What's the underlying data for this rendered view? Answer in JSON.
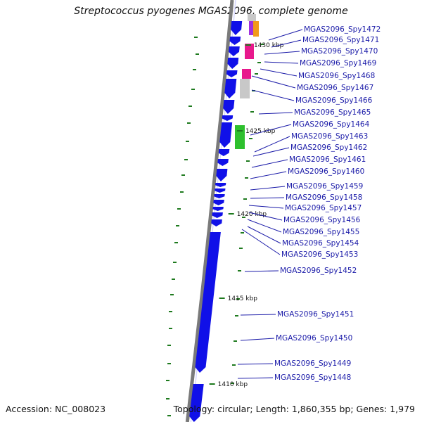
{
  "title": "Streptococcus pyogenes MGAS2096, complete genome",
  "footer": {
    "accession": "Accession: NC_008023",
    "topology": "Topology: circular; Length: 1,860,355 bp; Genes: 1,979"
  },
  "colors": {
    "gene_strand": "#1010e8",
    "backbone": "#7a7a7a",
    "tick": "#1e7a1e",
    "label": "#1a1aa8",
    "magenta": "#e8188c",
    "orange": "#f29a1a",
    "green": "#2ec02e",
    "grey": "#c8c8c8"
  },
  "kbp_markers": [
    "1430 kbp",
    "1425 kbp",
    "1420 kbp",
    "1415 kbp",
    "1410 kbp"
  ],
  "genes": [
    "MGAS2096_Spy1472",
    "MGAS2096_Spy1471",
    "MGAS2096_Spy1470",
    "MGAS2096_Spy1469",
    "MGAS2096_Spy1468",
    "MGAS2096_Spy1467",
    "MGAS2096_Spy1466",
    "MGAS2096_Spy1465",
    "MGAS2096_Spy1464",
    "MGAS2096_Spy1463",
    "MGAS2096_Spy1462",
    "MGAS2096_Spy1461",
    "MGAS2096_Spy1460",
    "MGAS2096_Spy1459",
    "MGAS2096_Spy1458",
    "MGAS2096_Spy1457",
    "MGAS2096_Spy1456",
    "MGAS2096_Spy1455",
    "MGAS2096_Spy1454",
    "MGAS2096_Spy1453",
    "MGAS2096_Spy1452",
    "MGAS2096_Spy1451",
    "MGAS2096_Spy1450",
    "MGAS2096_Spy1449",
    "MGAS2096_Spy1448"
  ]
}
